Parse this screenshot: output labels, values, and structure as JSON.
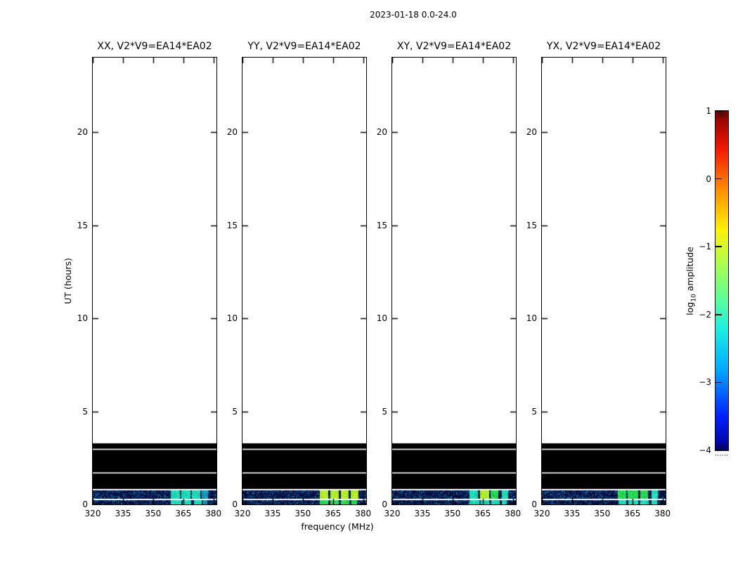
{
  "figure": {
    "title": "2023-01-18 0.0-24.0",
    "xlabel": "frequency (MHz)",
    "ylabel": "UT (hours)",
    "colorbar_label": {
      "prefix": "log",
      "sub": "10",
      "suffix": " amplitude"
    }
  },
  "chart_data": {
    "type": "heatmap",
    "title": "2023-01-18 0.0-24.0",
    "xlabel": "frequency (MHz)",
    "ylabel": "UT (hours)",
    "x_axis": {
      "label": "frequency (MHz)",
      "unit": "MHz",
      "min": 320,
      "max": 381.5,
      "ticks": [
        320,
        335,
        350,
        365,
        380
      ]
    },
    "y_axis": {
      "label": "UT (hours)",
      "unit": "hours",
      "min": 0,
      "max": 24,
      "ticks": [
        0,
        5,
        10,
        15,
        20
      ]
    },
    "colorbar": {
      "label": "log10 amplitude",
      "min": -4,
      "max": 1,
      "ticks": [
        1,
        0,
        -1,
        -2,
        -3,
        -4
      ],
      "colormap": "jet"
    },
    "common_features": {
      "description": "Data present only from 0 to ~3.3 UT hours; rest of each panel is blank. Black (zero-amplitude) band from ~0.83h to ~3.28h with thin white gap rows; two noisy low-amplitude blue spectrogram bands near 0h with bright RFI patches between ~358 and ~378 MHz.",
      "black_band_hours": [
        0.83,
        3.28
      ],
      "white_rows_hours": [
        [
          1.66,
          1.72
        ],
        [
          2.93,
          2.99
        ]
      ],
      "noise_bands_hours": [
        [
          0.0,
          0.23
        ],
        [
          0.3,
          0.76
        ]
      ],
      "bright_patch_freq_range_mhz": [
        358,
        378
      ]
    },
    "panels": [
      {
        "label": "XX, V2*V9=EA14*EA02",
        "patches_upper": [
          [
            358.8,
            363.3,
            "cyan"
          ],
          [
            364.2,
            368.6,
            "cyan"
          ],
          [
            369.2,
            373.4,
            "cyan"
          ],
          [
            374.2,
            377.4,
            "dimcyan"
          ]
        ],
        "patches_lower": [
          [
            358.8,
            364.0,
            "cyan"
          ],
          [
            364.6,
            369.0,
            "cyan"
          ],
          [
            370.2,
            374.2,
            "cyan"
          ],
          [
            375.0,
            377.0,
            "dimcyan"
          ]
        ]
      },
      {
        "label": "YY, V2*V9=EA14*EA02",
        "patches_upper": [
          [
            358.5,
            362.8,
            "yellowgreen"
          ],
          [
            363.8,
            368.0,
            "yellowgreen"
          ],
          [
            369.0,
            372.8,
            "yellowgreen"
          ],
          [
            373.8,
            377.8,
            "yellowgreen"
          ]
        ],
        "patches_lower": [
          [
            358.5,
            362.8,
            "green"
          ],
          [
            363.8,
            368.0,
            "green"
          ],
          [
            369.0,
            373.0,
            "green"
          ],
          [
            374.0,
            376.8,
            "green"
          ]
        ]
      },
      {
        "label": "XY, V2*V9=EA14*EA02",
        "patches_upper": [
          [
            358.5,
            362.8,
            "cyan"
          ],
          [
            363.8,
            368.3,
            "yellowgreen"
          ],
          [
            369.0,
            372.8,
            "green"
          ],
          [
            374.4,
            377.6,
            "cyan"
          ]
        ],
        "patches_lower": [
          [
            358.5,
            363.5,
            "cyan"
          ],
          [
            364.2,
            368.2,
            "cyan"
          ],
          [
            369.4,
            373.4,
            "cyan"
          ],
          [
            374.4,
            377.0,
            "cyan"
          ]
        ]
      },
      {
        "label": "YX, V2*V9=EA14*EA02",
        "patches_upper": [
          [
            357.8,
            361.8,
            "green"
          ],
          [
            362.8,
            368.0,
            "green"
          ],
          [
            369.0,
            372.8,
            "green"
          ],
          [
            374.4,
            377.8,
            "cyan"
          ]
        ],
        "patches_lower": [
          [
            358.0,
            362.0,
            "cyan"
          ],
          [
            363.0,
            368.0,
            "cyan"
          ],
          [
            369.0,
            373.0,
            "cyan"
          ],
          [
            374.4,
            377.4,
            "cyan"
          ]
        ]
      }
    ]
  }
}
